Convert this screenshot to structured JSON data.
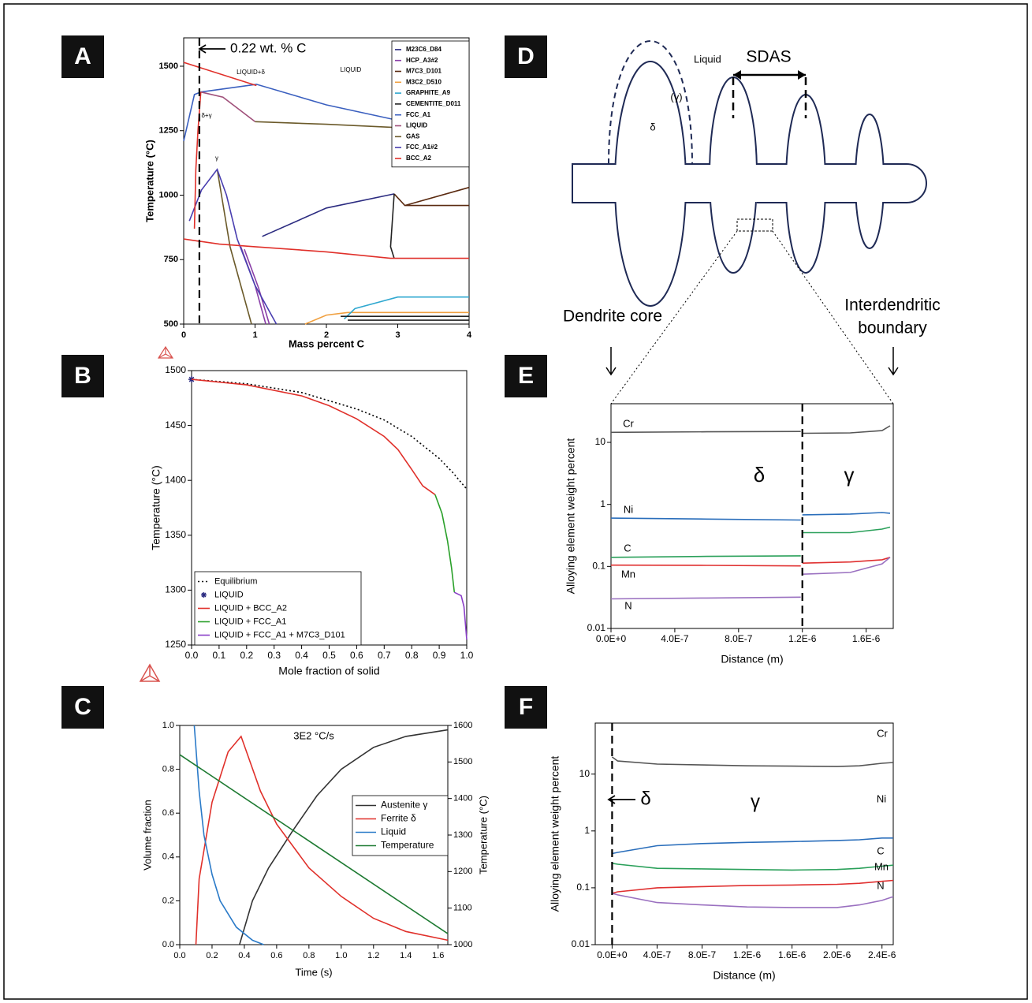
{
  "panel_labels": [
    "A",
    "B",
    "C",
    "D",
    "E",
    "F"
  ],
  "diagram": {
    "labels": {
      "liquid": "Liquid",
      "sdas": "SDAS",
      "gamma": "(γ)",
      "delta": "δ",
      "core": "Dendrite core",
      "boundary": [
        "Interdendritic",
        "boundary"
      ]
    }
  },
  "chart_data": [
    {
      "type": "line",
      "xlabel": "Mass percent C",
      "ylabel": "Temperature (°C)",
      "xlim": [
        0,
        4
      ],
      "ylim": [
        500,
        1610
      ],
      "xticks": [
        0,
        1,
        2,
        3,
        4
      ],
      "yticks": [
        500,
        750,
        1000,
        1250,
        1500
      ],
      "annotations": [
        "0.22 wt. % C",
        "LIQUID",
        "LIQUID+δ",
        "δ+γ",
        "γ"
      ],
      "vline": 0.22,
      "legend": "upper right",
      "series": [
        {
          "name": "M23C6_D84",
          "color": "#2b2b80",
          "x": [
            1.1,
            2,
            2.95
          ],
          "values": [
            840,
            950,
            1005
          ]
        },
        {
          "name": "HCP_A3#2",
          "color": "#8a3fa8",
          "x": [
            0.8,
            1.0,
            1.15,
            null,
            0.85,
            1.05,
            1.2
          ],
          "values": [
            800,
            650,
            500,
            null,
            790,
            640,
            500
          ]
        },
        {
          "name": "M7C3_D101",
          "color": "#5a2a10",
          "x": [
            2.95,
            3.1,
            4,
            null,
            3.1,
            4
          ],
          "values": [
            1005,
            960,
            960,
            null,
            960,
            1030
          ]
        },
        {
          "name": "M3C2_D510",
          "color": "#f0a040",
          "x": [
            1.7,
            2.0,
            2.3,
            4
          ],
          "values": [
            500,
            535,
            545,
            545
          ]
        },
        {
          "name": "GRAPHITE_A9",
          "color": "#30a8d0",
          "x": [
            2.25,
            2.4,
            3,
            4
          ],
          "values": [
            520,
            560,
            605,
            605
          ]
        },
        {
          "name": "CEMENTITE_D011",
          "color": "#222222",
          "x": [
            2.2,
            4,
            null,
            2.3,
            4,
            null,
            2.95,
            2.9,
            2.95
          ],
          "values": [
            530,
            530,
            null,
            515,
            515,
            null,
            1005,
            800,
            755
          ]
        },
        {
          "name": "FCC_A1",
          "color": "#3a5fbf",
          "x": [
            0,
            0.15,
            0.24,
            null,
            0.24,
            1.02,
            2,
            3,
            4
          ],
          "values": [
            1210,
            1390,
            1400,
            null,
            1400,
            1430,
            1350,
            1290,
            1240
          ]
        },
        {
          "name": "LIQUID",
          "color": "#a0507a",
          "x": [
            0.24,
            0.55,
            1.0
          ],
          "values": [
            1400,
            1380,
            1285
          ]
        },
        {
          "name": "GAS",
          "color": "#6b5a2a",
          "x": [
            1.0,
            2,
            3,
            4,
            null,
            0.47,
            0.65,
            0.95
          ],
          "values": [
            1285,
            1275,
            1262,
            1255,
            null,
            1100,
            800,
            500
          ]
        },
        {
          "name": "FCC_A1#2",
          "color": "#4a3fb0",
          "x": [
            0.08,
            0.25,
            0.47,
            0.6,
            0.75,
            1.0,
            1.3
          ],
          "values": [
            900,
            1020,
            1100,
            1000,
            830,
            650,
            500
          ]
        },
        {
          "name": "BCC_A2",
          "color": "#e0302a",
          "x": [
            0,
            1.02,
            null,
            0.15,
            0.17,
            0.2,
            0.24,
            null,
            0,
            0.5,
            1,
            2,
            2.9,
            4
          ],
          "values": [
            1515,
            1425,
            null,
            870,
            1100,
            1250,
            1400,
            null,
            830,
            810,
            800,
            780,
            755,
            755
          ]
        }
      ]
    },
    {
      "type": "line",
      "xlabel": "Mole fraction of solid",
      "ylabel": "Temperature (°C)",
      "xlim": [
        0,
        1
      ],
      "ylim": [
        1250,
        1500
      ],
      "xticks": [
        {
          "value": 0,
          "label": "0.0"
        },
        0.1,
        0.2,
        0.3,
        0.4,
        0.5,
        0.6,
        0.7,
        0.8,
        0.9,
        {
          "value": 1,
          "label": "1.0"
        }
      ],
      "yticks": [
        1250,
        1300,
        1350,
        1400,
        1450,
        1500
      ],
      "legend": "lower left",
      "series": [
        {
          "name": "Equilibrium",
          "color": "#000000",
          "style": "dotted",
          "x": [
            0,
            0.2,
            0.4,
            0.6,
            0.7,
            0.8,
            0.9,
            0.95,
            1.0
          ],
          "values": [
            1492,
            1488,
            1480,
            1465,
            1455,
            1440,
            1420,
            1407,
            1392
          ]
        },
        {
          "name": "LIQUID",
          "color": "#2b2b80",
          "marker": "star",
          "x": [
            0
          ],
          "values": [
            1492
          ]
        },
        {
          "name": "LIQUID + BCC_A2",
          "color": "#e0302a",
          "x": [
            0,
            0.2,
            0.4,
            0.5,
            0.6,
            0.7,
            0.75,
            0.8,
            0.84,
            0.885
          ],
          "values": [
            1492,
            1487,
            1477,
            1468,
            1456,
            1440,
            1428,
            1410,
            1395,
            1387
          ]
        },
        {
          "name": "LIQUID + FCC_A1",
          "color": "#2aa02a",
          "x": [
            0.885,
            0.91,
            0.93,
            0.945,
            0.955
          ],
          "values": [
            1387,
            1370,
            1345,
            1320,
            1298
          ]
        },
        {
          "name": "LIQUID + FCC_A1 + M7C3_D101",
          "color": "#8a3fc8",
          "x": [
            0.955,
            0.98,
            0.99,
            1.0
          ],
          "values": [
            1298,
            1295,
            1285,
            1255
          ]
        }
      ]
    },
    {
      "type": "line",
      "title": "3E2 °C/s",
      "xlabel": "Time (s)",
      "ylabel": "Volume fraction",
      "y2label": "Temperature (°C)",
      "xlim": [
        0,
        1.66
      ],
      "ylim": [
        0,
        1
      ],
      "y2lim": [
        1000,
        1600
      ],
      "xticks": [
        {
          "value": 0,
          "label": "0.0"
        },
        0.2,
        0.4,
        0.6,
        0.8,
        {
          "value": 1,
          "label": "1.0"
        },
        1.2,
        1.4,
        1.6
      ],
      "yticks": [
        {
          "value": 0,
          "label": "0.0"
        },
        0.2,
        0.4,
        0.6,
        0.8,
        {
          "value": 1,
          "label": "1.0"
        }
      ],
      "y2ticks": [
        1000,
        1100,
        1200,
        1300,
        1400,
        1500,
        1600
      ],
      "legend": "center right",
      "series": [
        {
          "name": "Austenite γ",
          "color": "#333333",
          "x": [
            0.37,
            0.45,
            0.55,
            0.7,
            0.85,
            1.0,
            1.2,
            1.4,
            1.66
          ],
          "values": [
            0,
            0.2,
            0.35,
            0.52,
            0.68,
            0.8,
            0.9,
            0.95,
            0.98
          ]
        },
        {
          "name": "Ferrite δ",
          "color": "#e0302a",
          "x": [
            0.1,
            0.12,
            0.2,
            0.3,
            0.38,
            0.5,
            0.6,
            0.8,
            1.0,
            1.2,
            1.4,
            1.66
          ],
          "values": [
            0,
            0.3,
            0.65,
            0.88,
            0.95,
            0.7,
            0.55,
            0.35,
            0.22,
            0.12,
            0.06,
            0.02
          ]
        },
        {
          "name": "Liquid",
          "color": "#2a7ac8",
          "x": [
            0.09,
            0.12,
            0.15,
            0.2,
            0.25,
            0.35,
            0.45,
            0.52
          ],
          "values": [
            1.0,
            0.7,
            0.5,
            0.32,
            0.2,
            0.08,
            0.02,
            0
          ]
        },
        {
          "name": "Temperature",
          "color": "#1e7a32",
          "axis": "y2",
          "x": [
            0,
            1.66
          ],
          "values": [
            1520,
            1030
          ]
        }
      ]
    },
    {
      "type": "line",
      "xlabel": "Distance (m)",
      "ylabel": "Alloying element weight percent",
      "yscale": "log",
      "xlim": [
        0,
        1.77e-06
      ],
      "ylim": [
        0.01,
        42
      ],
      "xticks": [
        {
          "value": 0,
          "label": "0.0E+0"
        },
        {
          "value": 4e-07,
          "label": "4.0E-7"
        },
        {
          "value": 8e-07,
          "label": "8.0E-7"
        },
        {
          "value": 1.2e-06,
          "label": "1.2E-6"
        },
        {
          "value": 1.6e-06,
          "label": "1.6E-6"
        }
      ],
      "yticks": [
        0.01,
        0.1,
        1,
        10
      ],
      "annotations": [
        "δ",
        "γ"
      ],
      "vline": 1.2e-06,
      "x": [
        0,
        6e-07,
        1.19e-06,
        null,
        1.2e-06,
        1.5e-06,
        1.7e-06,
        1.75e-06
      ],
      "series": [
        {
          "name": "Cr",
          "color": "#555555",
          "values": [
            14.5,
            14.8,
            15,
            null,
            14,
            14.2,
            15.5,
            18.5
          ]
        },
        {
          "name": "Ni",
          "color": "#2a6ebb",
          "values": [
            0.6,
            0.58,
            0.56,
            null,
            0.68,
            0.7,
            0.74,
            0.72
          ]
        },
        {
          "name": "C",
          "color": "#2aa05a",
          "values": [
            0.14,
            0.145,
            0.148,
            null,
            0.35,
            0.35,
            0.4,
            0.43
          ]
        },
        {
          "name": "Mn",
          "color": "#e03030",
          "values": [
            0.105,
            0.104,
            0.102,
            null,
            0.113,
            0.118,
            0.128,
            0.14
          ]
        },
        {
          "name": "N",
          "color": "#9a70c0",
          "values": [
            0.03,
            0.031,
            0.032,
            null,
            0.075,
            0.08,
            0.11,
            0.14
          ]
        }
      ]
    },
    {
      "type": "line",
      "xlabel": "Distance (m)",
      "ylabel": "Alloying element weight percent",
      "yscale": "log",
      "xlim": [
        -1.5e-07,
        2.5e-06
      ],
      "ylim": [
        0.01,
        79
      ],
      "xticks": [
        {
          "value": 0,
          "label": "0.0E+0"
        },
        {
          "value": 4e-07,
          "label": "4.0E-7"
        },
        {
          "value": 8e-07,
          "label": "8.0E-7"
        },
        {
          "value": 1.2e-06,
          "label": "1.2E-6"
        },
        {
          "value": 1.6e-06,
          "label": "1.6E-6"
        },
        {
          "value": 2e-06,
          "label": "2.0E-6"
        },
        {
          "value": 2.4e-06,
          "label": "2.4E-6"
        }
      ],
      "yticks": [
        0.01,
        0.1,
        1,
        10
      ],
      "annotations": [
        "δ",
        "γ"
      ],
      "vline": 0,
      "x": [
        0,
        5e-08,
        4e-07,
        8e-07,
        1.2e-06,
        1.6e-06,
        2e-06,
        2.2e-06,
        2.4e-06,
        2.5e-06
      ],
      "series": [
        {
          "name": "Cr",
          "color": "#555555",
          "values": [
            20,
            17,
            15,
            14.5,
            14,
            13.8,
            13.6,
            14,
            15.5,
            16
          ]
        },
        {
          "name": "Ni",
          "color": "#2a6ebb",
          "values": [
            0.4,
            0.42,
            0.55,
            0.6,
            0.63,
            0.65,
            0.68,
            0.7,
            0.75,
            0.75
          ]
        },
        {
          "name": "C",
          "color": "#2aa05a",
          "values": [
            0.27,
            0.26,
            0.22,
            0.215,
            0.21,
            0.205,
            0.21,
            0.22,
            0.24,
            0.25
          ]
        },
        {
          "name": "Mn",
          "color": "#e03030",
          "values": [
            0.08,
            0.085,
            0.1,
            0.105,
            0.11,
            0.112,
            0.115,
            0.12,
            0.13,
            0.135
          ]
        },
        {
          "name": "N",
          "color": "#9a70c0",
          "values": [
            0.08,
            0.075,
            0.055,
            0.05,
            0.046,
            0.045,
            0.045,
            0.05,
            0.06,
            0.07
          ]
        }
      ]
    }
  ]
}
